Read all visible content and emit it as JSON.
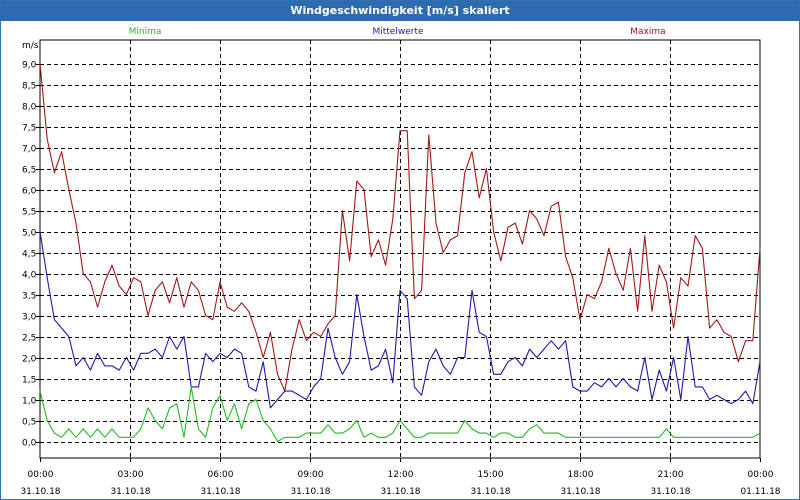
{
  "window": {
    "title": "Windgeschwindigkeit [m/s] skaliert"
  },
  "colors": {
    "minima": "#22bb22",
    "mittelwerte": "#1a1aaa",
    "maxima": "#a01818",
    "grid": "#000000",
    "titlebar": "#2e6bae"
  },
  "chart_data": {
    "type": "line",
    "title": "Windgeschwindigkeit [m/s] skaliert",
    "ylabel": "m/s",
    "xlabel": "",
    "ylim": [
      0,
      9.5
    ],
    "xlim": [
      0,
      24
    ],
    "yticks": [
      "0,0",
      "0,5",
      "1,0",
      "1,5",
      "2,0",
      "2,5",
      "3,0",
      "3,5",
      "4,0",
      "4,5",
      "5,0",
      "5,5",
      "6,0",
      "6,5",
      "7,0",
      "7,5",
      "8,0",
      "8,5",
      "9,0"
    ],
    "xticks": [
      {
        "x": 0,
        "time": "00:00",
        "date": "31.10.18"
      },
      {
        "x": 3,
        "time": "03:00",
        "date": "31.10.18"
      },
      {
        "x": 6,
        "time": "06:00",
        "date": "31.10.18"
      },
      {
        "x": 9,
        "time": "09:00",
        "date": "31.10.18"
      },
      {
        "x": 12,
        "time": "12:00",
        "date": "31.10.18"
      },
      {
        "x": 15,
        "time": "15:00",
        "date": "31.10.18"
      },
      {
        "x": 18,
        "time": "18:00",
        "date": "31.10.18"
      },
      {
        "x": 21,
        "time": "21:00",
        "date": "31.10.18"
      },
      {
        "x": 24,
        "time": "00:00",
        "date": "01.11.18"
      }
    ],
    "legend": [
      "Minima",
      "Mittelwerte",
      "Maxima"
    ],
    "series": [
      {
        "name": "Maxima",
        "color": "#a01818",
        "values": [
          9.0,
          7.2,
          6.4,
          6.9,
          6.0,
          5.2,
          4.0,
          3.8,
          3.2,
          3.8,
          4.2,
          3.7,
          3.5,
          3.9,
          3.8,
          3.0,
          3.6,
          3.8,
          3.3,
          3.9,
          3.2,
          3.8,
          3.6,
          3.0,
          2.9,
          3.8,
          3.2,
          3.1,
          3.3,
          3.1,
          2.6,
          2.0,
          2.6,
          1.6,
          1.2,
          2.2,
          2.9,
          2.4,
          2.6,
          2.5,
          2.8,
          3.0,
          5.5,
          4.3,
          6.2,
          6.0,
          4.4,
          4.8,
          4.2,
          5.3,
          7.4,
          7.4,
          3.4,
          3.6,
          7.3,
          5.2,
          4.5,
          4.8,
          4.9,
          6.4,
          6.9,
          5.8,
          6.5,
          5.0,
          4.3,
          5.1,
          5.2,
          4.7,
          5.5,
          5.3,
          4.9,
          5.6,
          5.7,
          4.4,
          3.9,
          2.9,
          3.5,
          3.4,
          3.8,
          4.6,
          4.0,
          3.6,
          4.6,
          3.1,
          4.9,
          3.1,
          4.2,
          3.8,
          2.7,
          3.9,
          3.7,
          4.9,
          4.6,
          2.7,
          2.9,
          2.6,
          2.5,
          1.9,
          2.4,
          2.4,
          4.6
        ]
      },
      {
        "name": "Mittelwerte",
        "color": "#1a1aaa",
        "values": [
          5.0,
          3.9,
          2.9,
          2.7,
          2.5,
          1.8,
          2.0,
          1.7,
          2.1,
          1.8,
          1.8,
          1.7,
          2.0,
          1.7,
          2.1,
          2.1,
          2.2,
          2.0,
          2.5,
          2.2,
          2.5,
          1.3,
          1.3,
          2.1,
          1.9,
          2.1,
          2.0,
          2.2,
          2.1,
          1.3,
          1.2,
          1.9,
          0.8,
          1.0,
          1.2,
          1.2,
          1.1,
          1.0,
          1.3,
          1.5,
          2.7,
          2.0,
          1.6,
          1.9,
          3.5,
          2.5,
          1.7,
          1.8,
          2.2,
          1.4,
          3.6,
          3.4,
          1.3,
          1.1,
          1.9,
          2.2,
          1.8,
          1.6,
          2.0,
          2.0,
          3.6,
          2.6,
          2.5,
          1.6,
          1.6,
          1.9,
          2.0,
          1.8,
          2.2,
          2.0,
          2.2,
          2.4,
          2.2,
          2.4,
          1.3,
          1.2,
          1.2,
          1.4,
          1.3,
          1.5,
          1.3,
          1.5,
          1.3,
          1.2,
          2.0,
          1.0,
          1.7,
          1.2,
          2.0,
          1.0,
          2.5,
          1.3,
          1.3,
          1.0,
          1.1,
          1.0,
          0.9,
          1.0,
          1.2,
          0.9,
          1.9
        ]
      },
      {
        "name": "Minima",
        "color": "#22bb22",
        "values": [
          1.2,
          0.5,
          0.2,
          0.1,
          0.3,
          0.1,
          0.3,
          0.1,
          0.3,
          0.1,
          0.3,
          0.1,
          0.1,
          0.1,
          0.3,
          0.8,
          0.5,
          0.3,
          0.8,
          0.9,
          0.1,
          1.3,
          0.3,
          0.1,
          0.8,
          1.1,
          0.5,
          0.9,
          0.3,
          0.9,
          1.0,
          0.5,
          0.3,
          0.0,
          0.1,
          0.1,
          0.1,
          0.2,
          0.2,
          0.2,
          0.4,
          0.2,
          0.2,
          0.3,
          0.5,
          0.1,
          0.2,
          0.1,
          0.1,
          0.2,
          0.5,
          0.3,
          0.1,
          0.1,
          0.2,
          0.2,
          0.2,
          0.2,
          0.2,
          0.5,
          0.3,
          0.2,
          0.2,
          0.1,
          0.2,
          0.2,
          0.1,
          0.1,
          0.3,
          0.4,
          0.2,
          0.2,
          0.2,
          0.1,
          0.1,
          0.1,
          0.1,
          0.1,
          0.1,
          0.1,
          0.1,
          0.1,
          0.1,
          0.1,
          0.1,
          0.1,
          0.1,
          0.3,
          0.1,
          0.1,
          0.1,
          0.1,
          0.1,
          0.1,
          0.1,
          0.1,
          0.1,
          0.1,
          0.1,
          0.1,
          0.2
        ]
      }
    ]
  }
}
